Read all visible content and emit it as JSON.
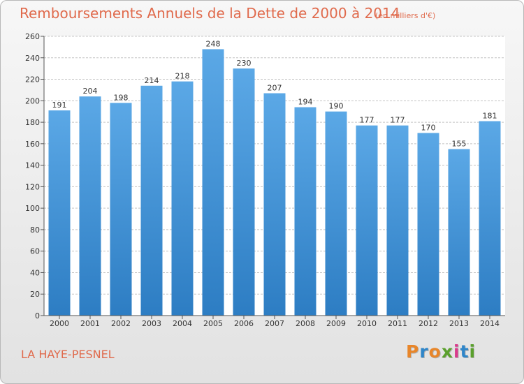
{
  "header": {
    "title": "Remboursements Annuels de la Dette de 2000 à 2014",
    "unit": "(en milliers d'€)"
  },
  "footer": {
    "commune": "LA HAYE-PESNEL",
    "logo": "Proxiti"
  },
  "colors": {
    "accent": "#e06a4c",
    "bar_top": "#5ba8e6",
    "bar_bottom": "#2d7dc3",
    "logo_letters": [
      "#e8862a",
      "#2f86c9",
      "#e8862a",
      "#5aa02c",
      "#d93a8c",
      "#2f86c9",
      "#5aa02c"
    ]
  },
  "chart_data": {
    "type": "bar",
    "title": "Remboursements Annuels de la Dette de 2000 à 2014",
    "subtitle": "(en milliers d'€)",
    "xlabel": "",
    "ylabel": "",
    "categories": [
      "2000",
      "2001",
      "2002",
      "2003",
      "2004",
      "2005",
      "2006",
      "2007",
      "2008",
      "2009",
      "2010",
      "2011",
      "2012",
      "2013",
      "2014"
    ],
    "values": [
      191,
      204,
      198,
      214,
      218,
      248,
      230,
      207,
      194,
      190,
      177,
      177,
      170,
      155,
      181
    ],
    "ylim": [
      0,
      260
    ],
    "yticks": [
      0,
      20,
      40,
      60,
      80,
      100,
      120,
      140,
      160,
      180,
      200,
      220,
      240,
      260
    ],
    "grid": true
  }
}
